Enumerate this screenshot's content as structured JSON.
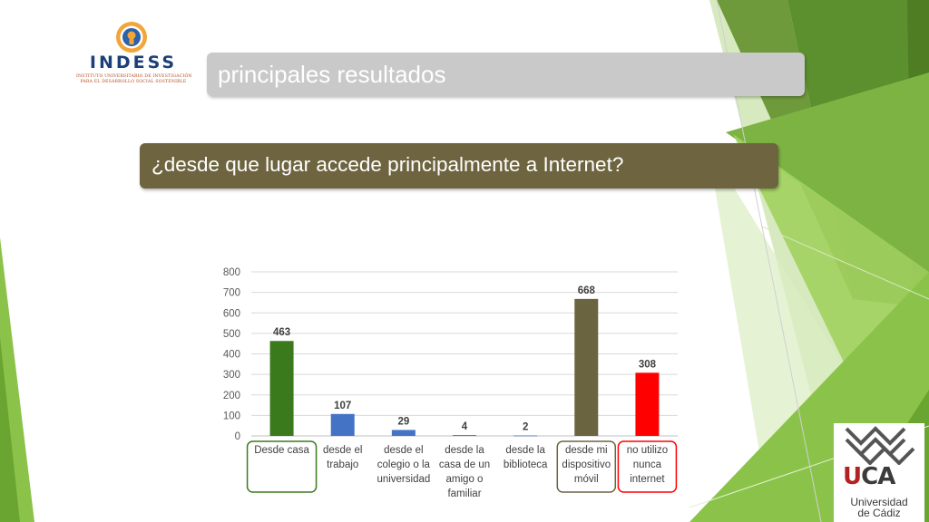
{
  "logos": {
    "indess": {
      "name": "INDESS",
      "subtitle_line1": "INSTITUTO UNIVERSITARIO DE INVESTIGACIÓN",
      "subtitle_line2": "PARA EL DESARROLLO SOCIAL SOSTENIBLE"
    },
    "uca": {
      "name": "UCA",
      "line1": "Universidad",
      "line2": "de Cádiz"
    }
  },
  "slide": {
    "title": "principales resultados",
    "question": "¿desde que lugar accede principalmente a Internet?"
  },
  "colors": {
    "title_bar": "#c9c9c9",
    "question_bar": "#6e6540",
    "green_dark": "#3a7a1c",
    "blue": "#4472c4",
    "olive": "#6b6440",
    "red": "#ff0000"
  },
  "chart_data": {
    "type": "bar",
    "categories": [
      [
        "Desde casa"
      ],
      [
        "desde el",
        "trabajo"
      ],
      [
        "desde el",
        "colegio o la",
        "universidad"
      ],
      [
        "desde la",
        "casa de un",
        "amigo o",
        "familiar"
      ],
      [
        "desde la",
        "biblioteca"
      ],
      [
        "desde mi",
        "dispositivo",
        "móvil"
      ],
      [
        "no utilizo",
        "nunca",
        "internet"
      ]
    ],
    "values": [
      463,
      107,
      29,
      4,
      2,
      668,
      308
    ],
    "value_labels": [
      "463",
      "107",
      "29",
      "4",
      "2",
      "668",
      "308"
    ],
    "bar_colors": [
      "#3a7a1c",
      "#4472c4",
      "#4472c4",
      "#4472c4",
      "#4472c4",
      "#6b6440",
      "#ff0000"
    ],
    "highlight_boxes": [
      {
        "category_index": 0,
        "color": "#3a7a1c"
      },
      {
        "category_index": 5,
        "color": "#6b6440"
      },
      {
        "category_index": 6,
        "color": "#ff0000"
      }
    ],
    "ylim": [
      0,
      800
    ],
    "yticks": [
      0,
      100,
      200,
      300,
      400,
      500,
      600,
      700,
      800
    ],
    "grid": true,
    "title": "",
    "xlabel": "",
    "ylabel": ""
  }
}
